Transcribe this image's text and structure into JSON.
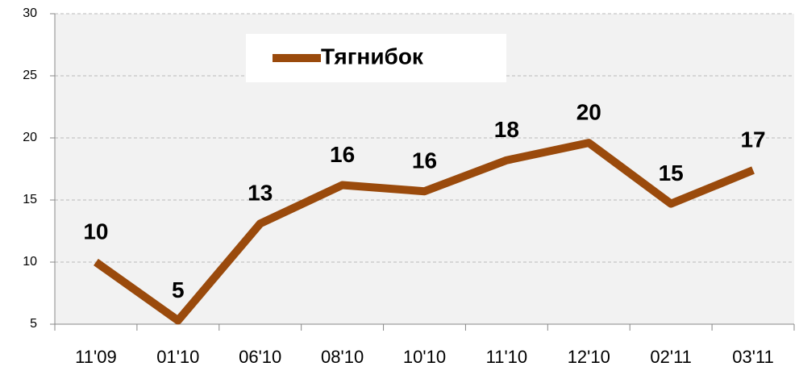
{
  "chart_data": {
    "type": "line",
    "categories": [
      "11'09",
      "01'10",
      "06'10",
      "08'10",
      "10'10",
      "11'10",
      "12'10",
      "02'11",
      "03'11"
    ],
    "series": [
      {
        "name": "Тягнибок",
        "color": "#9a4a0c",
        "values": [
          10,
          5.3,
          13.1,
          16.2,
          15.7,
          18.2,
          19.6,
          14.7,
          17.4
        ],
        "value_labels": [
          "10",
          "5",
          "13",
          "16",
          "16",
          "18",
          "20",
          "15",
          "17"
        ]
      }
    ],
    "ylim": [
      5,
      30
    ],
    "yticks": [
      5,
      10,
      15,
      20,
      25,
      30
    ],
    "grid": true,
    "legend": "top"
  }
}
